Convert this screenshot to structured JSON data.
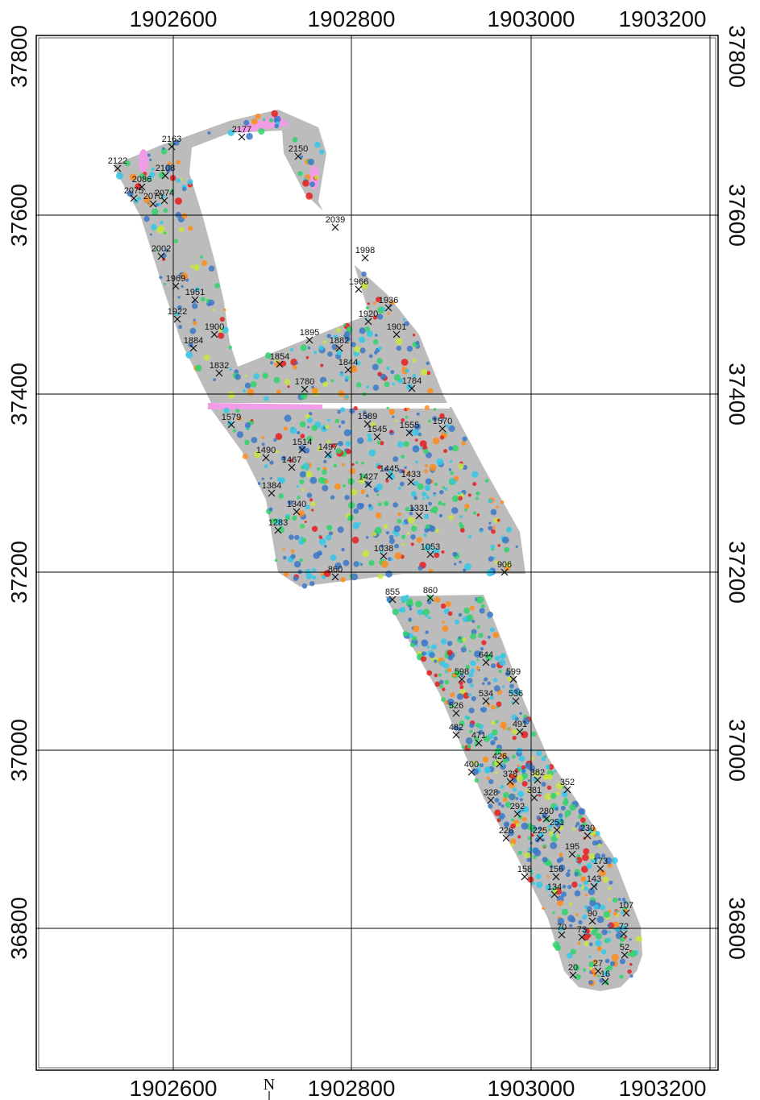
{
  "map": {
    "x_axis_ticks": [
      "1902600",
      "1902800",
      "1903000",
      "1903200"
    ],
    "y_axis_ticks": [
      "37800",
      "37600",
      "37400",
      "37200",
      "37000",
      "36800"
    ],
    "north_label": "N",
    "colors": {
      "survey_fill": "#bcbcbc",
      "low": "#3b78c8",
      "mid_low": "#33c8e8",
      "mid": "#2fd36a",
      "mid_high": "#c8e83a",
      "high": "#ff8c1a",
      "peak": "#e81c1c",
      "max": "#f29be6",
      "grid": "#000000"
    },
    "stations": [
      {
        "id": "2122"
      },
      {
        "id": "2163"
      },
      {
        "id": "2177"
      },
      {
        "id": "2150"
      },
      {
        "id": "2086"
      },
      {
        "id": "2108"
      },
      {
        "id": "2075"
      },
      {
        "id": "2074"
      },
      {
        "id": "2070"
      },
      {
        "id": "2039"
      },
      {
        "id": "2002"
      },
      {
        "id": "1998"
      },
      {
        "id": "1969"
      },
      {
        "id": "1966"
      },
      {
        "id": "1951"
      },
      {
        "id": "1936"
      },
      {
        "id": "1922"
      },
      {
        "id": "1920"
      },
      {
        "id": "1901"
      },
      {
        "id": "1900"
      },
      {
        "id": "1895"
      },
      {
        "id": "1884"
      },
      {
        "id": "1882"
      },
      {
        "id": "1854"
      },
      {
        "id": "1844"
      },
      {
        "id": "1832"
      },
      {
        "id": "1780"
      },
      {
        "id": "1784"
      },
      {
        "id": "1579"
      },
      {
        "id": "1589"
      },
      {
        "id": "1545"
      },
      {
        "id": "1555"
      },
      {
        "id": "1570"
      },
      {
        "id": "1514"
      },
      {
        "id": "1490"
      },
      {
        "id": "1497"
      },
      {
        "id": "1467"
      },
      {
        "id": "1445"
      },
      {
        "id": "1433"
      },
      {
        "id": "1427"
      },
      {
        "id": "1384"
      },
      {
        "id": "1340"
      },
      {
        "id": "1331"
      },
      {
        "id": "1283"
      },
      {
        "id": "1038"
      },
      {
        "id": "1053"
      },
      {
        "id": "906"
      },
      {
        "id": "860"
      },
      {
        "id": "855"
      },
      {
        "id": "860"
      },
      {
        "id": "644"
      },
      {
        "id": "598"
      },
      {
        "id": "599"
      },
      {
        "id": "534"
      },
      {
        "id": "536"
      },
      {
        "id": "526"
      },
      {
        "id": "491"
      },
      {
        "id": "482"
      },
      {
        "id": "471"
      },
      {
        "id": "426"
      },
      {
        "id": "400"
      },
      {
        "id": "378"
      },
      {
        "id": "382"
      },
      {
        "id": "381"
      },
      {
        "id": "352"
      },
      {
        "id": "328"
      },
      {
        "id": "292"
      },
      {
        "id": "280"
      },
      {
        "id": "251"
      },
      {
        "id": "226"
      },
      {
        "id": "225"
      },
      {
        "id": "230"
      },
      {
        "id": "195"
      },
      {
        "id": "173"
      },
      {
        "id": "158"
      },
      {
        "id": "156"
      },
      {
        "id": "143"
      },
      {
        "id": "134"
      },
      {
        "id": "107"
      },
      {
        "id": "90"
      },
      {
        "id": "72"
      },
      {
        "id": "70"
      },
      {
        "id": "73"
      },
      {
        "id": "52"
      },
      {
        "id": "20"
      },
      {
        "id": "27"
      },
      {
        "id": "16"
      }
    ]
  }
}
